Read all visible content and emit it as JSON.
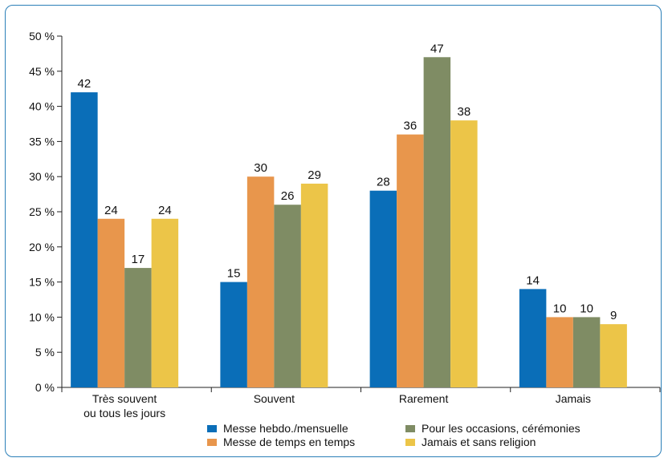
{
  "chart_data": {
    "type": "bar",
    "categories": [
      "Très souvent\nou tous les jours",
      "Souvent",
      "Rarement",
      "Jamais"
    ],
    "series": [
      {
        "name": "Messe hebdo./mensuelle",
        "color": "#0a6eb8",
        "values": [
          42,
          15,
          28,
          14
        ]
      },
      {
        "name": "Messe de temps en temps",
        "color": "#e8964c",
        "values": [
          24,
          30,
          36,
          10
        ]
      },
      {
        "name": "Pour les occasions, cérémonies",
        "color": "#7f8c64",
        "values": [
          17,
          26,
          47,
          10
        ]
      },
      {
        "name": "Jamais et sans religion",
        "color": "#ecc548",
        "values": [
          24,
          29,
          38,
          9
        ]
      }
    ],
    "ylim": [
      0,
      50
    ],
    "yticks": [
      "0 %",
      "5 %",
      "10 %",
      "15 %",
      "20 %",
      "25 %",
      "30 %",
      "35 %",
      "40 %",
      "45 %",
      "50 %"
    ],
    "grid": false,
    "legend_position": "bottom",
    "data_labels": true
  }
}
